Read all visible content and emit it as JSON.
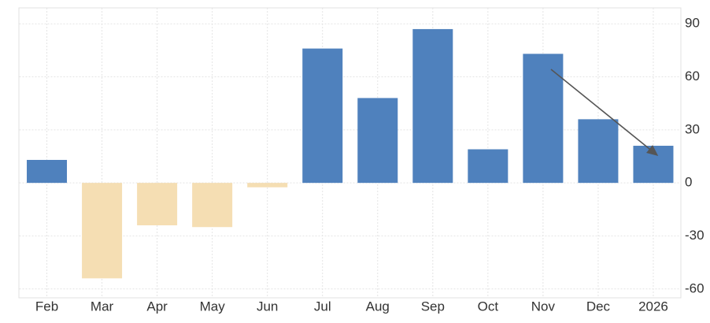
{
  "chart_data": {
    "type": "bar",
    "categories": [
      "Feb",
      "Mar",
      "Apr",
      "May",
      "Jun",
      "Jul",
      "Aug",
      "Sep",
      "Oct",
      "Nov",
      "Dec",
      "2026"
    ],
    "values": [
      13,
      -54,
      -24,
      -25,
      -2.5,
      76,
      48,
      87,
      19,
      73,
      36,
      21
    ],
    "positive_color": "#4f81bd",
    "negative_color": "#f5deb3",
    "ylim": [
      -65,
      99
    ],
    "yticks": [
      -60,
      -30,
      0,
      30,
      60,
      90
    ],
    "grid": true,
    "y_axis_side": "right"
  }
}
